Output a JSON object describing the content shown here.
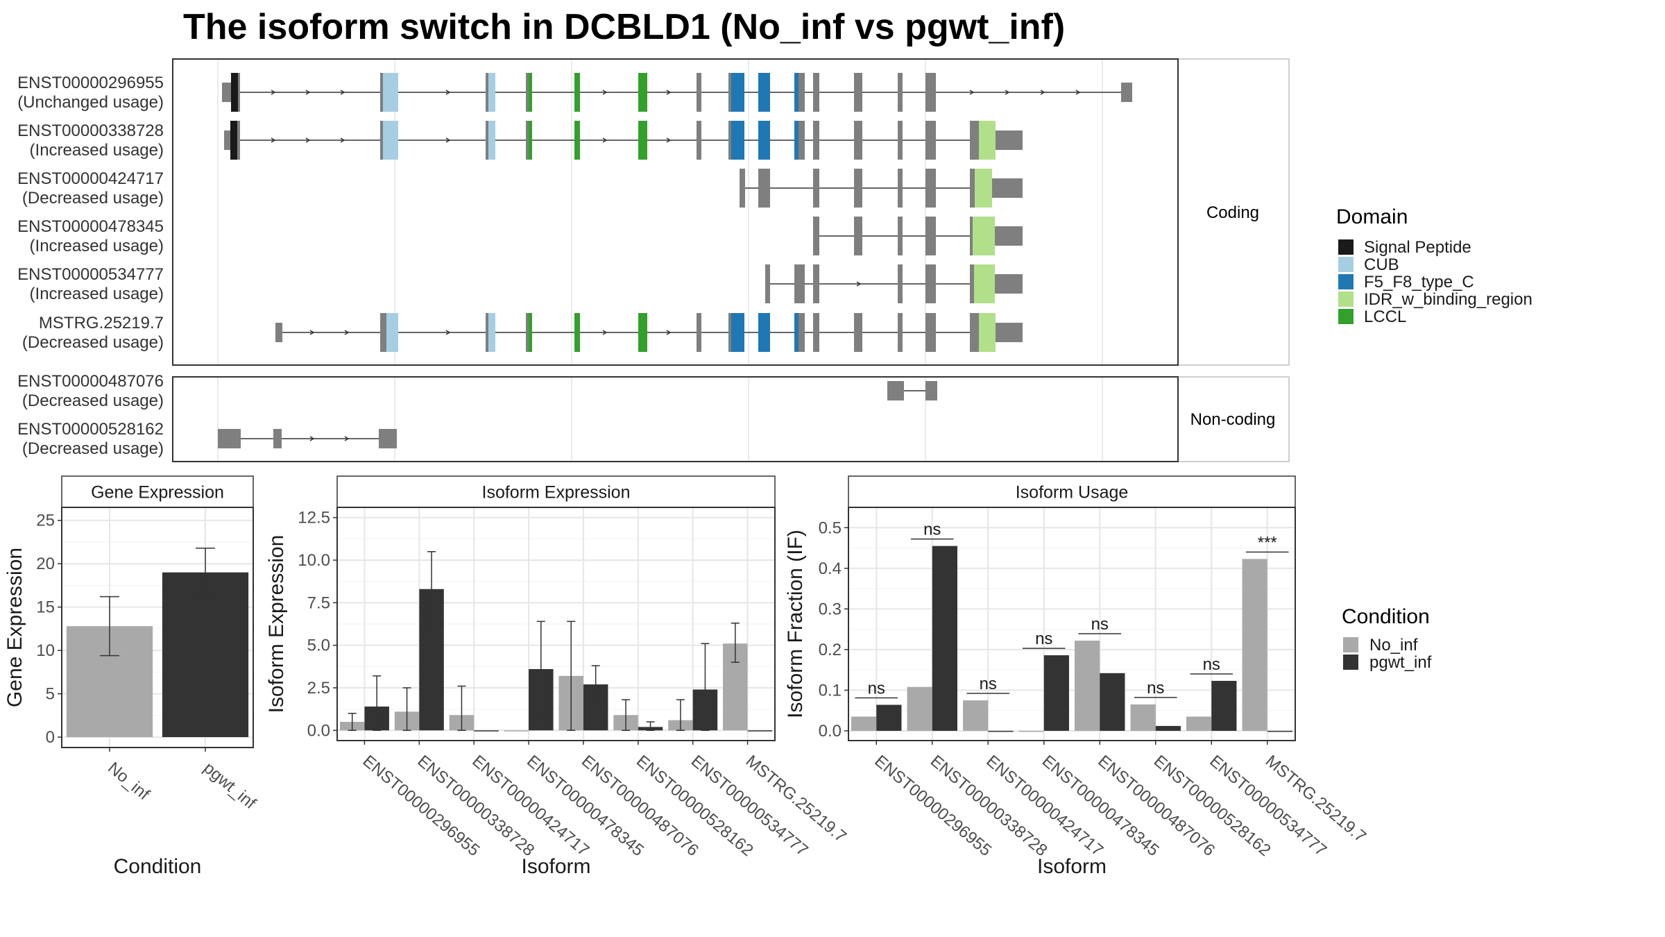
{
  "title": "The isoform switch in DCBLD1 (No_inf vs pgwt_inf)",
  "colors": {
    "signal_peptide": "#1a1a1a",
    "cub": "#a6cee3",
    "f5f8": "#1f78b4",
    "idr": "#b2df8a",
    "lccl": "#33a02c",
    "exon_grey": "#7f7f7f",
    "no_inf": "#a9a9a9",
    "pgwt_inf": "#333333"
  },
  "structure": {
    "coding_strip": "Coding",
    "noncoding_strip": "Non-coding",
    "coding": [
      {
        "id": "ENST00000296955",
        "usage": "(Unchanged usage)"
      },
      {
        "id": "ENST00000338728",
        "usage": "(Increased usage)"
      },
      {
        "id": "ENST00000424717",
        "usage": "(Decreased usage)"
      },
      {
        "id": "ENST00000478345",
        "usage": "(Increased usage)"
      },
      {
        "id": "ENST00000534777",
        "usage": "(Increased usage)"
      },
      {
        "id": "MSTRG.25219.7",
        "usage": "(Decreased usage)"
      }
    ],
    "noncoding": [
      {
        "id": "ENST00000487076",
        "usage": "(Decreased usage)"
      },
      {
        "id": "ENST00000528162",
        "usage": "(Decreased usage)"
      }
    ]
  },
  "domain_legend": {
    "title": "Domain",
    "items": [
      {
        "label": "Signal Peptide",
        "color": "#1a1a1a"
      },
      {
        "label": "CUB",
        "color": "#a6cee3"
      },
      {
        "label": "F5_F8_type_C",
        "color": "#1f78b4"
      },
      {
        "label": "IDR_w_binding_region",
        "color": "#b2df8a"
      },
      {
        "label": "LCCL",
        "color": "#33a02c"
      }
    ]
  },
  "condition_legend": {
    "title": "Condition",
    "items": [
      {
        "label": "No_inf",
        "color": "#a9a9a9"
      },
      {
        "label": "pgwt_inf",
        "color": "#333333"
      }
    ]
  },
  "chart_data": [
    {
      "type": "bar",
      "title": "Gene Expression",
      "xlabel": "Condition",
      "ylabel": "Gene Expression",
      "categories": [
        "No_inf",
        "pgwt_inf"
      ],
      "values": [
        12.8,
        19.0
      ],
      "err_low": [
        9.4,
        16.2
      ],
      "err_high": [
        16.2,
        21.8
      ],
      "ylim": [
        -1.2,
        26.5
      ],
      "yticks": [
        0,
        5,
        10,
        15,
        20,
        25
      ],
      "ytick_labels": [
        "0",
        "5",
        "10",
        "15",
        "20",
        "25"
      ]
    },
    {
      "type": "bar",
      "title": "Isoform Expression",
      "xlabel": "Isoform",
      "ylabel": "Isoform Expression",
      "categories": [
        "ENST00000296955",
        "ENST00000338728",
        "ENST00000424717",
        "ENST00000478345",
        "ENST00000487076",
        "ENST00000528162",
        "ENST00000534777",
        "MSTRG.25219.7"
      ],
      "series": [
        {
          "name": "No_inf",
          "values": [
            0.5,
            1.1,
            0.9,
            0.0,
            3.2,
            0.9,
            0.6,
            5.1
          ],
          "err_low": [
            0.0,
            0.0,
            0.0,
            0.0,
            0.0,
            0.0,
            0.0,
            4.0
          ],
          "err_high": [
            1.0,
            2.5,
            2.6,
            0.0,
            6.4,
            1.8,
            1.8,
            6.3
          ]
        },
        {
          "name": "pgwt_inf",
          "values": [
            1.4,
            8.3,
            0.0,
            3.6,
            2.7,
            0.2,
            2.4,
            0.0
          ],
          "err_low": [
            0.0,
            6.1,
            0.0,
            0.8,
            1.6,
            0.0,
            0.0,
            0.0
          ],
          "err_high": [
            3.2,
            10.5,
            0.0,
            6.4,
            3.8,
            0.5,
            5.1,
            0.0
          ]
        }
      ],
      "ylim": [
        -0.6,
        13.1
      ],
      "yticks": [
        0,
        2.5,
        5,
        7.5,
        10,
        12.5
      ],
      "ytick_labels": [
        "0.0",
        "2.5",
        "5.0",
        "7.5",
        "10.0",
        "12.5"
      ]
    },
    {
      "type": "bar",
      "title": "Isoform Usage",
      "xlabel": "Isoform",
      "ylabel": "Isoform Fraction (IF)",
      "categories": [
        "ENST00000296955",
        "ENST00000338728",
        "ENST00000424717",
        "ENST00000478345",
        "ENST00000487076",
        "ENST00000528162",
        "ENST00000534777",
        "MSTRG.25219.7"
      ],
      "series": [
        {
          "name": "No_inf",
          "values": [
            0.035,
            0.108,
            0.075,
            0.0,
            0.222,
            0.065,
            0.035,
            0.423
          ]
        },
        {
          "name": "pgwt_inf",
          "values": [
            0.064,
            0.455,
            0.0,
            0.186,
            0.142,
            0.012,
            0.123,
            0.0
          ]
        }
      ],
      "significance": [
        "ns",
        "ns",
        "ns",
        "ns",
        "ns",
        "ns",
        "ns",
        "***"
      ],
      "ylim": [
        -0.024,
        0.55
      ],
      "yticks": [
        0,
        0.1,
        0.2,
        0.3,
        0.4,
        0.5
      ],
      "ytick_labels": [
        "0.0",
        "0.1",
        "0.2",
        "0.3",
        "0.4",
        "0.5"
      ]
    }
  ]
}
